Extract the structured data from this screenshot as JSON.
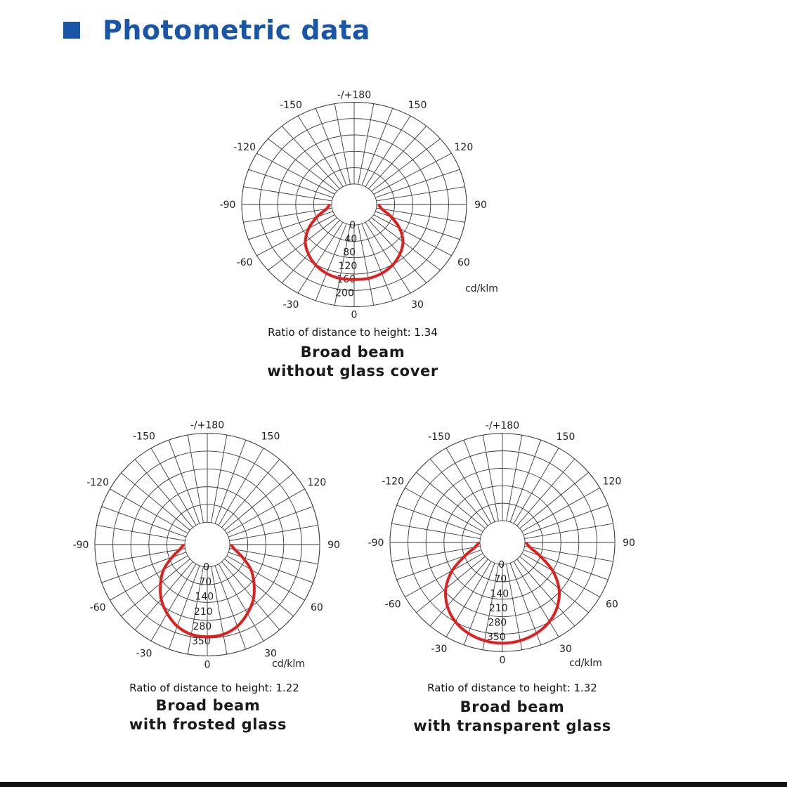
{
  "header": {
    "title": "Photometric data",
    "colors": {
      "accent": "#1a56a8"
    }
  },
  "colors": {
    "curve": "#e01f1f",
    "rule": "#111111"
  },
  "chart_data": [
    {
      "type": "polar",
      "angle_labels": [
        "-/+180",
        "150",
        "120",
        "90",
        "60",
        "30",
        "0",
        "-30",
        "-60",
        "-90",
        "-120",
        "-150"
      ],
      "radial_ticks": [
        0,
        40,
        80,
        120,
        160,
        200
      ],
      "rlim": [
        0,
        240
      ],
      "unit": "cd/klm",
      "series": [
        {
          "angles_deg": [
            0,
            10,
            20,
            30,
            40,
            50,
            60,
            70,
            80,
            90
          ],
          "values": [
            160,
            160,
            155,
            145,
            130,
            110,
            80,
            45,
            15,
            5
          ]
        }
      ],
      "ratio_text": "Ratio of distance to height: 1.34",
      "caption": [
        "Broad beam",
        "without glass cover"
      ]
    },
    {
      "type": "polar",
      "angle_labels": [
        "-/+180",
        "150",
        "120",
        "90",
        "60",
        "30",
        "0",
        "-30",
        "-60",
        "-90",
        "-120",
        "-150"
      ],
      "radial_ticks": [
        0,
        70,
        140,
        210,
        280,
        350
      ],
      "rlim": [
        0,
        420
      ],
      "unit": "cd/klm",
      "series": [
        {
          "angles_deg": [
            0,
            10,
            20,
            30,
            40,
            50,
            60,
            70,
            80,
            90
          ],
          "values": [
            330,
            325,
            305,
            270,
            230,
            180,
            130,
            70,
            25,
            5
          ]
        }
      ],
      "ratio_text": "Ratio of distance to height: 1.22",
      "caption": [
        "Broad beam",
        "with frosted glass"
      ]
    },
    {
      "type": "polar",
      "angle_labels": [
        "-/+180",
        "150",
        "120",
        "90",
        "60",
        "30",
        "0",
        "-30",
        "-60",
        "-90",
        "-120",
        "-150"
      ],
      "radial_ticks": [
        0,
        70,
        140,
        210,
        280,
        350
      ],
      "rlim": [
        0,
        420
      ],
      "unit": "cd/klm",
      "series": [
        {
          "angles_deg": [
            0,
            10,
            20,
            30,
            40,
            50,
            60,
            70,
            80,
            90
          ],
          "values": [
            380,
            375,
            360,
            335,
            295,
            240,
            165,
            80,
            25,
            5
          ]
        }
      ],
      "ratio_text": "Ratio of distance to height: 1.32",
      "caption": [
        "Broad beam",
        "with transparent glass"
      ]
    }
  ]
}
